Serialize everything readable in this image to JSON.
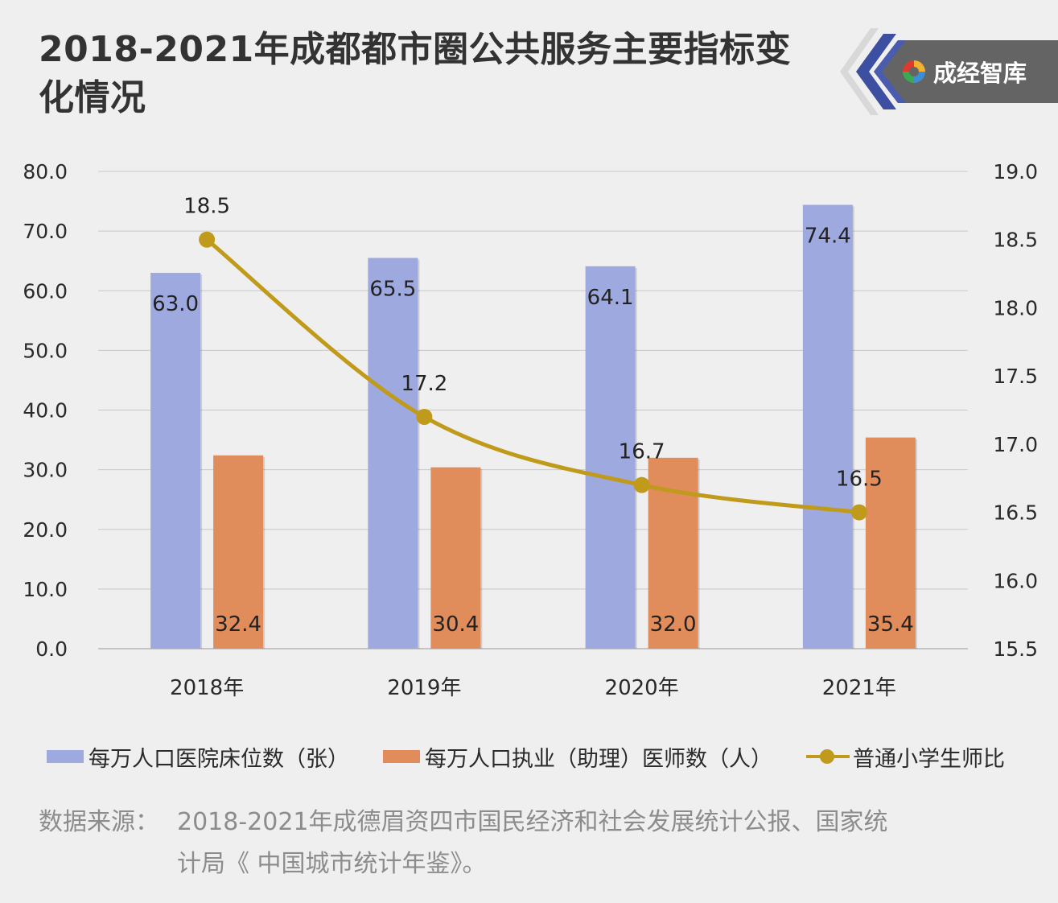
{
  "title": "2018-2021年成都都市圈公共服务主要指标变化情况",
  "brand": {
    "name": "成经智库",
    "icon": "swirl-logo-icon"
  },
  "colors": {
    "beds": "#9ea9e0",
    "doctors": "#e08c5b",
    "ratio": "#c09a1a",
    "grid": "#c8c8c8",
    "background": "#efefef"
  },
  "legend": [
    {
      "label": "每万人口医院床位数（张）",
      "series": "beds"
    },
    {
      "label": "每万人口执业（助理）医师数（人）",
      "series": "doctors"
    },
    {
      "label": "普通小学生师比",
      "series": "ratio"
    }
  ],
  "source": {
    "label": "数据来源：",
    "line1": "2018-2021年成德眉资四市国民经济和社会发展统计公报、国家统",
    "line2": "计局《 中国城市统计年鉴》。"
  },
  "chart_data": {
    "type": "bar",
    "title": "2018-2021年成都都市圈公共服务主要指标变化情况",
    "categories": [
      "2018年",
      "2019年",
      "2020年",
      "2021年"
    ],
    "series": [
      {
        "name": "每万人口医院床位数（张）",
        "type": "bar",
        "axis": "left",
        "values": [
          63.0,
          65.5,
          64.1,
          74.4
        ],
        "labels": [
          "63.0",
          "65.5",
          "64.1",
          "74.4"
        ]
      },
      {
        "name": "每万人口执业（助理）医师数（人）",
        "type": "bar",
        "axis": "left",
        "values": [
          32.4,
          30.4,
          32.0,
          35.4
        ],
        "labels": [
          "32.4",
          "30.4",
          "32.0",
          "35.4"
        ]
      },
      {
        "name": "普通小学生师比",
        "type": "line",
        "axis": "right",
        "values": [
          18.5,
          17.2,
          16.7,
          16.5
        ],
        "labels": [
          "18.5",
          "17.2",
          "16.7",
          "16.5"
        ]
      }
    ],
    "left_axis": {
      "ylim": [
        0,
        80
      ],
      "ticks": [
        "0.0",
        "10.0",
        "20.0",
        "30.0",
        "40.0",
        "50.0",
        "60.0",
        "70.0",
        "80.0"
      ]
    },
    "right_axis": {
      "ylim": [
        15.5,
        19.0
      ],
      "ticks": [
        "15.5",
        "16.0",
        "16.5",
        "17.0",
        "17.5",
        "18.0",
        "18.5",
        "19.0"
      ]
    },
    "grid": true,
    "legend_position": "bottom"
  }
}
